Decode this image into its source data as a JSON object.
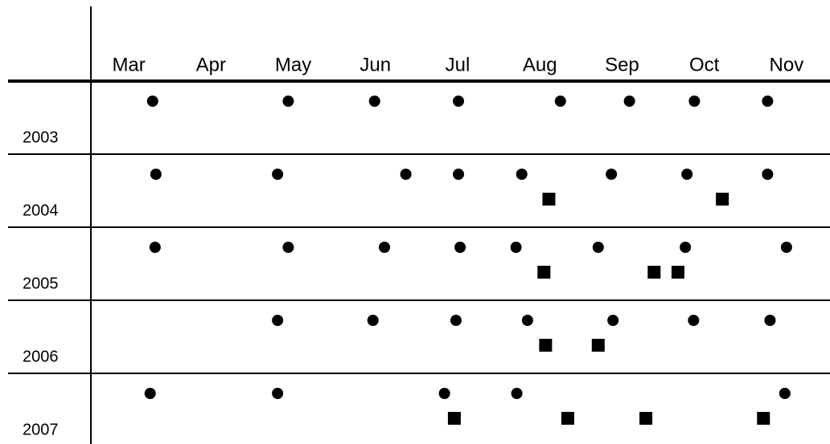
{
  "chart_data": {
    "type": "dot",
    "xlim": [
      2.5,
      11.5
    ],
    "xticks": [
      {
        "value": 3,
        "label": "Mar"
      },
      {
        "value": 4,
        "label": "Apr"
      },
      {
        "value": 5,
        "label": "May"
      },
      {
        "value": 6,
        "label": "Jun"
      },
      {
        "value": 7,
        "label": "Jul"
      },
      {
        "value": 8,
        "label": "Aug"
      },
      {
        "value": 9,
        "label": "Sep"
      },
      {
        "value": 10,
        "label": "Oct"
      },
      {
        "value": 11,
        "label": "Nov"
      }
    ],
    "color": "#000000",
    "rows": [
      {
        "year": "2003",
        "circles": [
          3.29,
          4.94,
          5.99,
          7.01,
          8.25,
          9.09,
          9.88,
          10.77
        ],
        "squares": []
      },
      {
        "year": "2004",
        "circles": [
          3.33,
          4.81,
          6.37,
          7.01,
          7.78,
          8.87,
          9.79,
          10.77
        ],
        "squares": [
          8.11,
          10.22
        ]
      },
      {
        "year": "2005",
        "circles": [
          3.32,
          4.94,
          6.11,
          7.03,
          7.71,
          8.71,
          9.77,
          11.0
        ],
        "squares": [
          8.05,
          9.39,
          9.68
        ]
      },
      {
        "year": "2006",
        "circles": [
          4.81,
          5.97,
          6.98,
          7.85,
          8.89,
          9.87,
          10.8
        ],
        "squares": [
          8.07,
          8.71
        ]
      },
      {
        "year": "2007",
        "circles": [
          3.26,
          4.81,
          6.84,
          7.72,
          10.98
        ],
        "squares": [
          6.96,
          8.34,
          9.29,
          10.72
        ]
      }
    ]
  }
}
